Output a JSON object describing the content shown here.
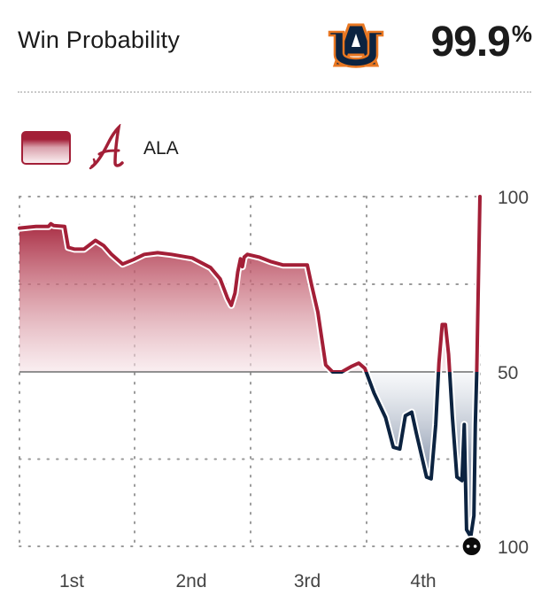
{
  "header": {
    "title": "Win Probability",
    "leader_logo": "auburn-au-logo",
    "leader_value": "99.9",
    "leader_unit": "%"
  },
  "legend": {
    "team_label": "ALA",
    "team_logo": "alabama-script-a-logo"
  },
  "colors": {
    "alabama": "#a31f37",
    "auburn": "#0c2340",
    "midline": "#6f6f6f",
    "grid": "#9a9a9a"
  },
  "chart_data": {
    "type": "area",
    "x_unit": "game progress (0 = kickoff, 1 = end of 4th quarter)",
    "x_categories": [
      "1st",
      "2nd",
      "3rd",
      "4th"
    ],
    "y_tick_labels": [
      "100",
      "50",
      "100"
    ],
    "y_range": [
      0,
      100
    ],
    "y_meaning": "Alabama win probability (%)",
    "midline": 50,
    "grid": true,
    "series": [
      {
        "name": "ALA",
        "points": [
          [
            0.0,
            82
          ],
          [
            0.036,
            83
          ],
          [
            0.063,
            83
          ],
          [
            0.068,
            84.5
          ],
          [
            0.074,
            83.5
          ],
          [
            0.098,
            83
          ],
          [
            0.106,
            71
          ],
          [
            0.12,
            70
          ],
          [
            0.14,
            70
          ],
          [
            0.165,
            75
          ],
          [
            0.183,
            72
          ],
          [
            0.2,
            67
          ],
          [
            0.224,
            61.5
          ],
          [
            0.247,
            64
          ],
          [
            0.271,
            67
          ],
          [
            0.3,
            68
          ],
          [
            0.33,
            67
          ],
          [
            0.375,
            65
          ],
          [
            0.415,
            59.5
          ],
          [
            0.436,
            53
          ],
          [
            0.452,
            42
          ],
          [
            0.46,
            38
          ],
          [
            0.468,
            45
          ],
          [
            0.474,
            57
          ],
          [
            0.48,
            64.5
          ],
          [
            0.484,
            60
          ],
          [
            0.488,
            65.5
          ],
          [
            0.495,
            67
          ],
          [
            0.52,
            65.5
          ],
          [
            0.545,
            63
          ],
          [
            0.572,
            61
          ],
          [
            0.601,
            61
          ],
          [
            0.625,
            61
          ],
          [
            0.634,
            50
          ],
          [
            0.648,
            34
          ],
          [
            0.665,
            4
          ],
          [
            0.68,
            0
          ],
          [
            0.7,
            0
          ],
          [
            0.72,
            3
          ],
          [
            0.737,
            5
          ],
          [
            0.75,
            2
          ],
          [
            0.77,
            -12
          ],
          [
            0.795,
            -26
          ],
          [
            0.812,
            -43
          ],
          [
            0.826,
            -44
          ],
          [
            0.838,
            -25
          ],
          [
            0.852,
            -23
          ],
          [
            0.862,
            -35
          ],
          [
            0.884,
            -60
          ],
          [
            0.894,
            -61
          ],
          [
            0.904,
            -30
          ],
          [
            0.911,
            5
          ],
          [
            0.918,
            27
          ],
          [
            0.925,
            27
          ],
          [
            0.932,
            10
          ],
          [
            0.94,
            -25
          ],
          [
            0.95,
            -60
          ],
          [
            0.961,
            -62
          ],
          [
            0.966,
            -30
          ],
          [
            0.971,
            -90
          ],
          [
            0.98,
            -94
          ],
          [
            0.987,
            -82
          ],
          [
            0.99,
            -30
          ],
          [
            0.993,
            0
          ],
          [
            1.0,
            100
          ]
        ]
      }
    ],
    "final_marker": {
      "x": 0.982,
      "y": 0
    }
  }
}
